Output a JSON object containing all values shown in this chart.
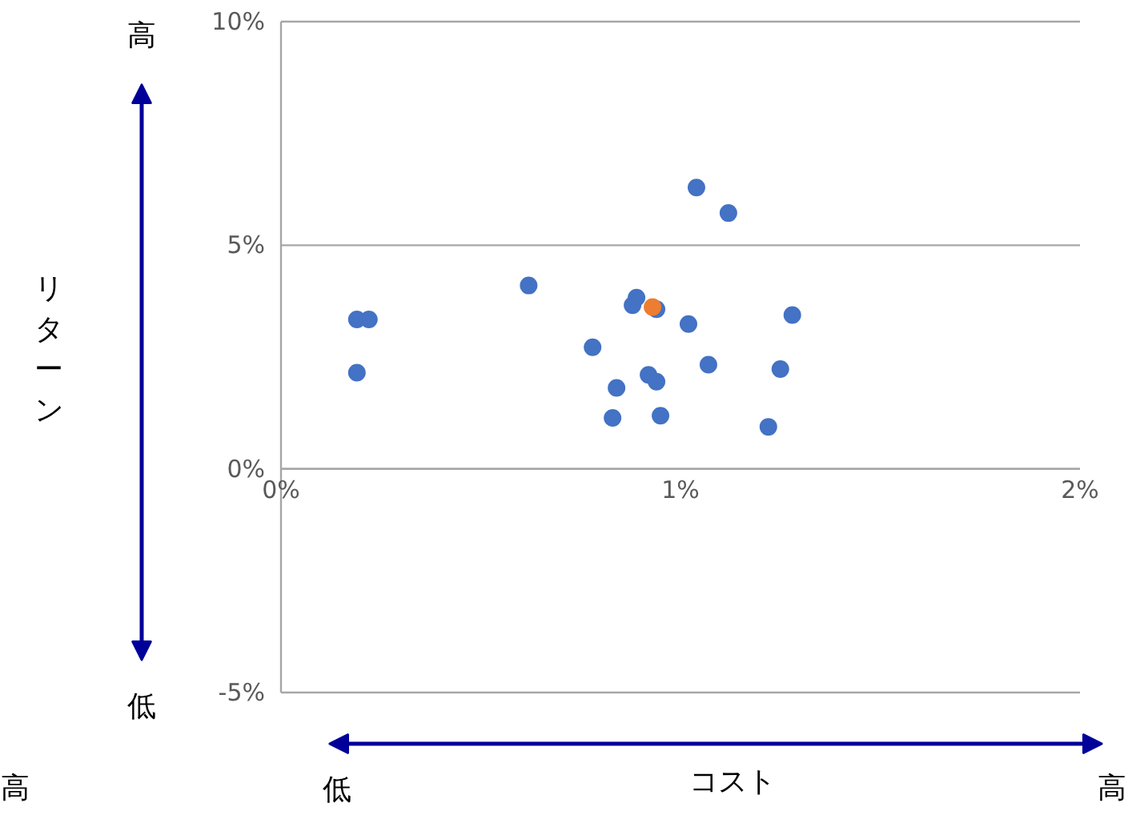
{
  "chart_data": {
    "type": "scatter",
    "xlabel": "コスト",
    "annotations": [
      "高",
      "低",
      "低",
      "高",
      "高",
      "リターン"
    ],
    "series": [
      {
        "color": "#4472c4",
        "x": [
          0.19,
          0.22,
          0.19,
          0.62,
          0.78,
          0.84,
          0.83,
          0.89,
          0.88,
          0.94,
          0.92,
          0.94,
          0.95,
          1.02,
          1.04,
          1.12,
          1.07,
          1.25,
          1.22,
          1.28
        ],
        "values": [
          3.34,
          3.34,
          2.15,
          4.1,
          2.72,
          1.81,
          1.14,
          3.83,
          3.66,
          3.57,
          2.1,
          1.95,
          1.19,
          3.24,
          6.29,
          5.72,
          2.33,
          2.23,
          0.94,
          3.44
        ]
      },
      {
        "color": "#ed7d31",
        "x": [
          0.93
        ],
        "values": [
          3.62
        ]
      }
    ],
    "xlim": [
      0,
      2
    ],
    "ylim": [
      -5,
      10
    ],
    "xticks": [
      {
        "value": 0,
        "label": "0%"
      },
      {
        "value": 1,
        "label": "1%"
      },
      {
        "value": 2,
        "label": "2%"
      }
    ],
    "yticks": [
      {
        "value": -5,
        "label": "-5%"
      },
      {
        "value": 0,
        "label": "0%"
      },
      {
        "value": 5,
        "label": "5%"
      },
      {
        "value": 10,
        "label": "10%"
      }
    ],
    "grid": "y",
    "marker": "circle"
  }
}
